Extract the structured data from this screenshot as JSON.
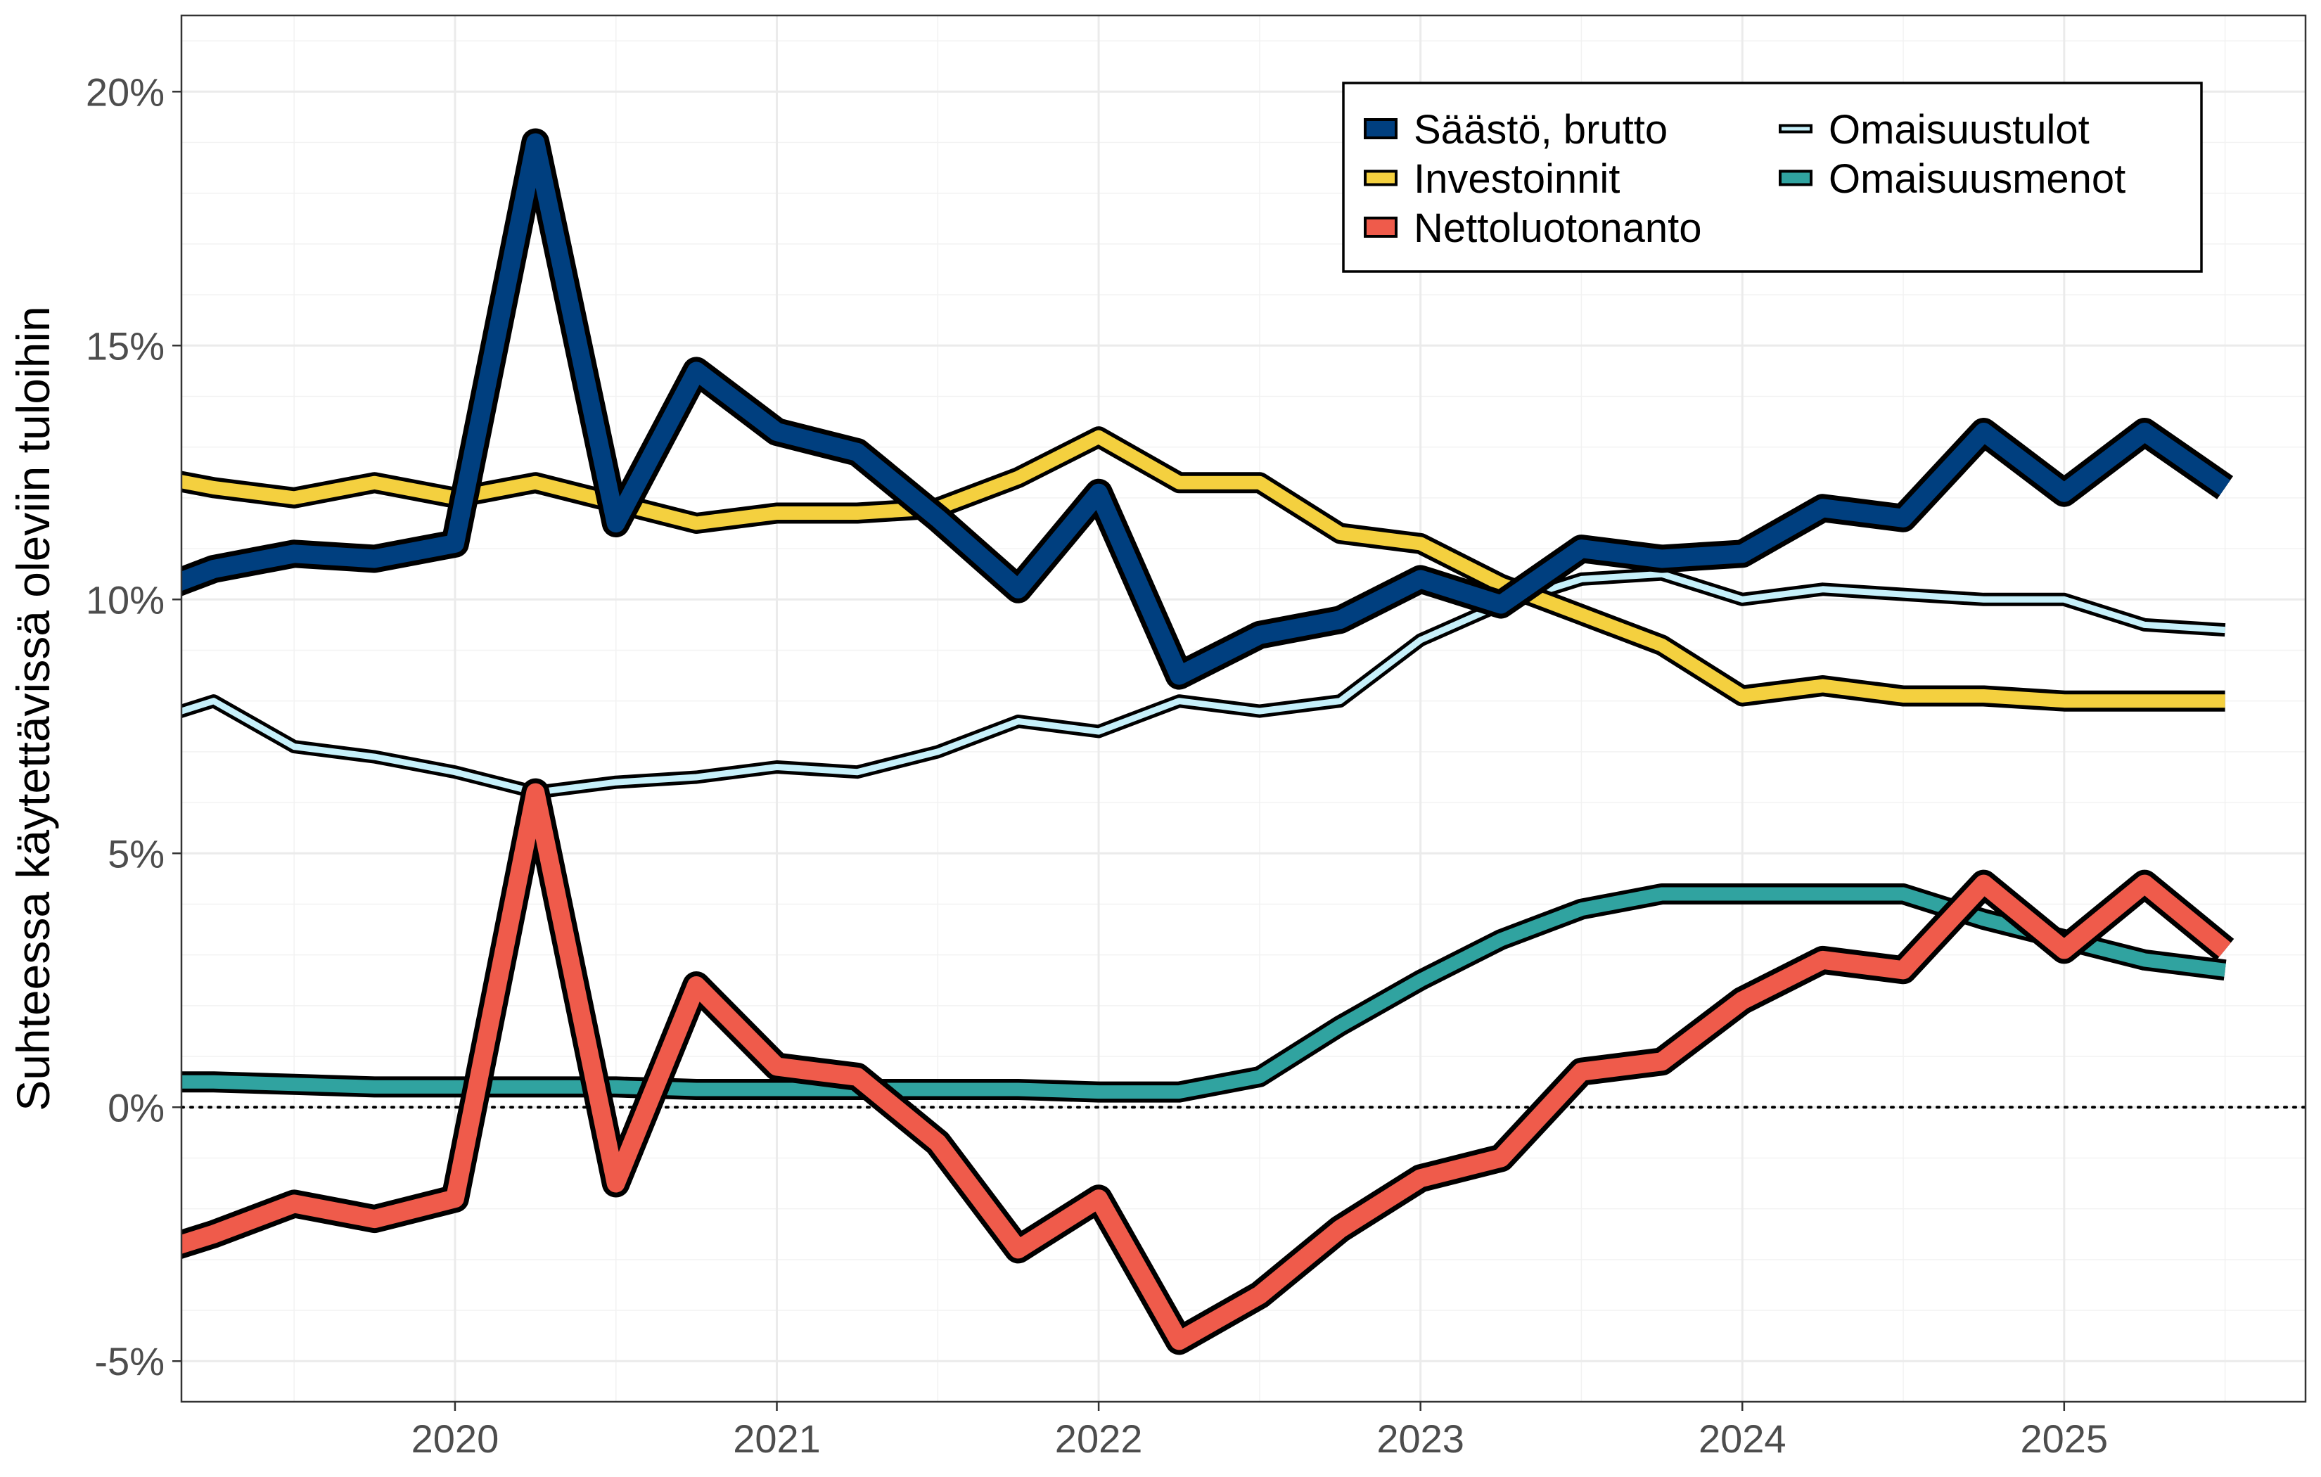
{
  "chart_data": {
    "type": "line",
    "title": "",
    "xlabel": "",
    "ylabel": "Suhteessa käytettävissä oleviin tuloihin",
    "x_start": 2019.0,
    "x_step": 0.25,
    "xlim": [
      2019.15,
      2025.75
    ],
    "ylim": [
      -5.8,
      21.5
    ],
    "x_ticks": [
      2020,
      2021,
      2022,
      2023,
      2024,
      2025
    ],
    "x_tick_labels": [
      "2020",
      "2021",
      "2022",
      "2023",
      "2024",
      "2025"
    ],
    "y_ticks": [
      -5,
      0,
      5,
      10,
      15,
      20
    ],
    "y_tick_labels": [
      "-5%",
      "0%",
      "5%",
      "10%",
      "15%",
      "20%"
    ],
    "grid": true,
    "zero_line": "dotted",
    "legend_position": "top-right",
    "legend_columns": 2,
    "series": [
      {
        "name": "Säästö, brutto",
        "color": "#003f7f",
        "style": "thick",
        "values": [
          10.0,
          10.6,
          10.9,
          10.8,
          11.1,
          19.0,
          11.5,
          14.5,
          13.3,
          12.9,
          11.6,
          10.2,
          12.1,
          8.5,
          9.3,
          9.6,
          10.4,
          9.9,
          11.0,
          10.8,
          10.9,
          11.8,
          11.6,
          13.3,
          12.1,
          13.3,
          12.2
        ]
      },
      {
        "name": "Investoinnit",
        "color": "#f4d03f",
        "style": "medium",
        "values": [
          12.5,
          12.2,
          12.0,
          12.3,
          12.0,
          12.3,
          11.9,
          11.5,
          11.7,
          11.7,
          11.8,
          12.4,
          13.2,
          12.3,
          12.3,
          11.3,
          11.1,
          10.3,
          9.7,
          9.1,
          8.1,
          8.3,
          8.1,
          8.1,
          8.0,
          8.0,
          8.0
        ]
      },
      {
        "name": "Nettoluotonanto",
        "color": "#ef5b4b",
        "style": "thick",
        "values": [
          -3.0,
          -2.5,
          -1.9,
          -2.2,
          -1.8,
          6.2,
          -1.5,
          2.4,
          0.8,
          0.6,
          -0.7,
          -2.8,
          -1.8,
          -4.6,
          -3.7,
          -2.4,
          -1.4,
          -1.0,
          0.7,
          0.9,
          2.1,
          2.9,
          2.7,
          4.4,
          3.1,
          4.4,
          3.1
        ]
      },
      {
        "name": "Omaisuustulot",
        "color": "#c6f0fa",
        "style": "thin",
        "values": [
          7.5,
          8.0,
          7.1,
          6.9,
          6.6,
          6.2,
          6.4,
          6.5,
          6.7,
          6.6,
          7.0,
          7.6,
          7.4,
          8.0,
          7.8,
          8.0,
          9.2,
          9.9,
          10.4,
          10.5,
          10.0,
          10.2,
          10.1,
          10.0,
          10.0,
          9.5,
          9.4
        ]
      },
      {
        "name": "Omaisuusmenot",
        "color": "#30a3a0",
        "style": "medium",
        "values": [
          0.5,
          0.5,
          0.45,
          0.4,
          0.4,
          0.4,
          0.4,
          0.35,
          0.35,
          0.35,
          0.35,
          0.35,
          0.3,
          0.3,
          0.6,
          1.6,
          2.5,
          3.3,
          3.9,
          4.2,
          4.2,
          4.2,
          4.2,
          3.7,
          3.3,
          2.9,
          2.7
        ]
      }
    ]
  }
}
